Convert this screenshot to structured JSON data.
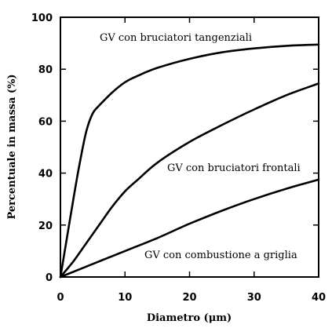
{
  "chart_data": {
    "type": "line",
    "xlabel": "Diametro (μm)",
    "ylabel": "Percentuale in massa (%)",
    "xlim": [
      0,
      40
    ],
    "ylim": [
      0,
      100
    ],
    "x_ticks": [
      0,
      10,
      20,
      30,
      40
    ],
    "y_ticks": [
      0,
      20,
      40,
      60,
      80,
      100
    ],
    "grid": false,
    "series": [
      {
        "name": "GV con bruciatori tangenziali",
        "points": [
          [
            0,
            0
          ],
          [
            1,
            15
          ],
          [
            2,
            30
          ],
          [
            3,
            44
          ],
          [
            4,
            56
          ],
          [
            5,
            63
          ],
          [
            6,
            66
          ],
          [
            8,
            71
          ],
          [
            10,
            75
          ],
          [
            12,
            77.5
          ],
          [
            15,
            80.5
          ],
          [
            20,
            84
          ],
          [
            25,
            86.5
          ],
          [
            30,
            88
          ],
          [
            35,
            89
          ],
          [
            40,
            89.5
          ]
        ]
      },
      {
        "name": "GV con bruciatori frontali",
        "points": [
          [
            0,
            0
          ],
          [
            2,
            6
          ],
          [
            4,
            13
          ],
          [
            6,
            20
          ],
          [
            8,
            27
          ],
          [
            10,
            33
          ],
          [
            12,
            37.5
          ],
          [
            15,
            44
          ],
          [
            20,
            52
          ],
          [
            25,
            58.5
          ],
          [
            30,
            64.5
          ],
          [
            35,
            70
          ],
          [
            40,
            74.5
          ]
        ]
      },
      {
        "name": "GV con combustione a griglia",
        "points": [
          [
            0,
            0
          ],
          [
            5,
            5
          ],
          [
            10,
            10
          ],
          [
            15,
            15
          ],
          [
            20,
            20.5
          ],
          [
            25,
            25.5
          ],
          [
            30,
            30
          ],
          [
            35,
            34
          ],
          [
            40,
            37.5
          ]
        ]
      }
    ]
  }
}
